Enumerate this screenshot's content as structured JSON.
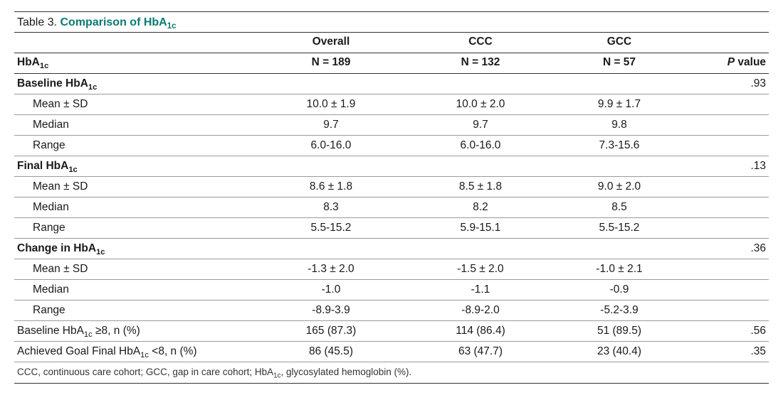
{
  "table": {
    "number_label": "Table 3.",
    "title_html": "Comparison of HbA<sub>1c</sub>",
    "row_header_html": "HbA<sub>1c</sub>",
    "pvalue_label_html": "<span class='pval'>P</span> value",
    "columns": [
      {
        "name": "Overall",
        "n": "N = 189"
      },
      {
        "name": "CCC",
        "n": "N = 132"
      },
      {
        "name": "GCC",
        "n": "N = 57"
      }
    ],
    "groups": [
      {
        "label_html": "Baseline HbA<sub>1c</sub>",
        "pvalue": ".93",
        "rows": [
          {
            "label": "Mean ± SD",
            "vals": [
              "10.0 ± 1.9",
              "10.0 ± 2.0",
              "9.9 ± 1.7"
            ]
          },
          {
            "label": "Median",
            "vals": [
              "9.7",
              "9.7",
              "9.8"
            ]
          },
          {
            "label": "Range",
            "vals": [
              "6.0-16.0",
              "6.0-16.0",
              "7.3-15.6"
            ]
          }
        ]
      },
      {
        "label_html": "Final HbA<sub>1c</sub>",
        "pvalue": ".13",
        "rows": [
          {
            "label": "Mean ± SD",
            "vals": [
              "8.6 ± 1.8",
              "8.5 ± 1.8",
              "9.0 ± 2.0"
            ]
          },
          {
            "label": "Median",
            "vals": [
              "8.3",
              "8.2",
              "8.5"
            ]
          },
          {
            "label": "Range",
            "vals": [
              "5.5-15.2",
              "5.9-15.1",
              "5.5-15.2"
            ]
          }
        ]
      },
      {
        "label_html": "Change in HbA<sub>1c</sub>",
        "pvalue": ".36",
        "rows": [
          {
            "label": "Mean ± SD",
            "vals": [
              "-1.3 ± 2.0",
              "-1.5 ± 2.0",
              "-1.0 ± 2.1"
            ]
          },
          {
            "label": "Median",
            "vals": [
              "-1.0",
              "-1.1",
              "-0.9"
            ]
          },
          {
            "label": "Range",
            "vals": [
              "-8.9-3.9",
              "-8.9-2.0",
              "-5.2-3.9"
            ]
          }
        ]
      }
    ],
    "flat_rows": [
      {
        "label_html": "Baseline HbA<sub>1c</sub> ≥8, n (%)",
        "vals": [
          "165 (87.3)",
          "114 (86.4)",
          "51 (89.5)"
        ],
        "pvalue": ".56"
      },
      {
        "label_html": "Achieved Goal Final HbA<sub>1c</sub> <8, n (%)",
        "vals": [
          "86 (45.5)",
          "63 (47.7)",
          "23 (40.4)"
        ],
        "pvalue": ".35"
      }
    ],
    "footnote_html": "CCC, continuous care cohort; GCC, gap in care cohort; HbA<sub>1c</sub>, glycosylated hemoglobin (%)."
  }
}
